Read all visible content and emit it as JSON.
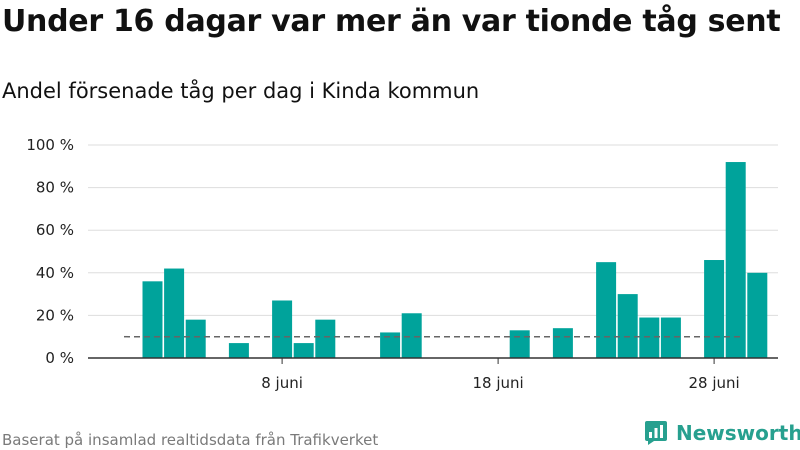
{
  "header": {
    "title": "Under 16 dagar var mer än var tionde tåg sent",
    "subtitle": "Andel försenade tåg per dag i Kinda kommun"
  },
  "footer": {
    "source": "Baserat på insamlad realtidsdata från Trafikverket",
    "brand": "Newsworthy"
  },
  "icons": {
    "brand_logo": "bar-chart-logo-icon"
  },
  "colors": {
    "bar": "#00a39b",
    "reference_line": "#666666",
    "brand": "#27a08f"
  },
  "chart_data": {
    "type": "bar",
    "x": [
      2,
      3,
      4,
      5,
      6,
      7,
      8,
      9,
      10,
      11,
      12,
      13,
      14,
      15,
      16,
      17,
      18,
      19,
      20,
      21,
      22,
      23,
      24,
      25,
      26,
      27,
      28,
      29,
      30
    ],
    "values": [
      36,
      42,
      18,
      null,
      7,
      null,
      27,
      7,
      18,
      null,
      null,
      12,
      21,
      null,
      null,
      null,
      null,
      13,
      null,
      14,
      null,
      45,
      30,
      19,
      19,
      null,
      46,
      92,
      40
    ],
    "y_unit": "%",
    "ylim": [
      0,
      100
    ],
    "yticks": [
      0,
      20,
      40,
      60,
      80,
      100
    ],
    "ytick_labels": [
      "0 %",
      "20 %",
      "40 %",
      "60 %",
      "80 %",
      "100 %"
    ],
    "xticks": [
      8,
      18,
      28
    ],
    "xtick_labels": [
      "8 juni",
      "18 juni",
      "28 juni"
    ],
    "reference_line": 10,
    "grid": true
  }
}
